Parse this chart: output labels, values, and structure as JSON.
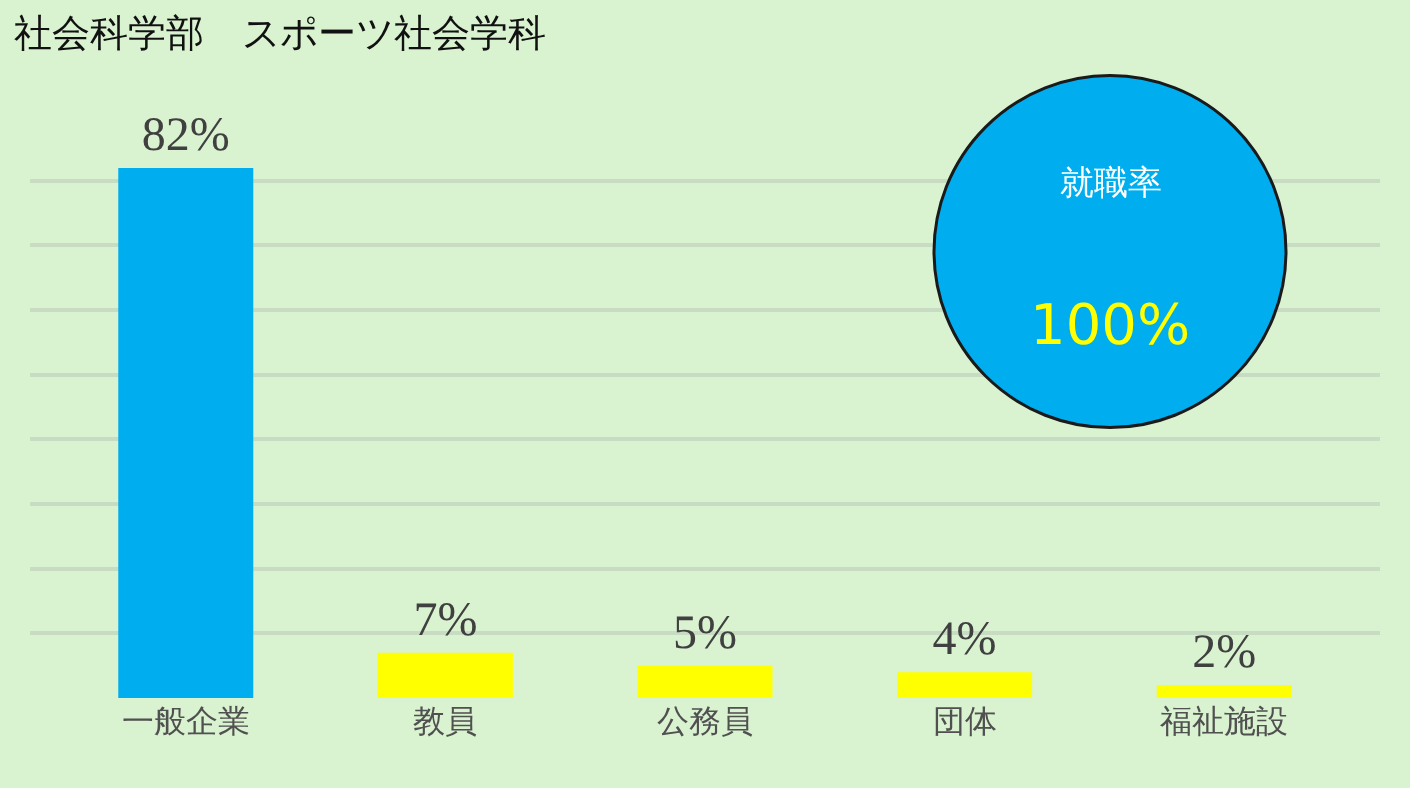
{
  "chart_data": {
    "type": "bar",
    "title": "社会科学部　スポーツ社会学科",
    "categories": [
      "一般企業",
      "教員",
      "公務員",
      "団体",
      "福祉施設"
    ],
    "values": [
      82,
      7,
      5,
      4,
      2
    ],
    "colors": [
      "#00aeef",
      "#ffff00",
      "#ffff00",
      "#ffff00",
      "#ffff00"
    ],
    "value_labels": [
      "82%",
      "7%",
      "5%",
      "4%",
      "2%"
    ],
    "tick_labels": "x",
    "grid": "y",
    "annotations": [
      "就職率",
      "100%"
    ]
  }
}
